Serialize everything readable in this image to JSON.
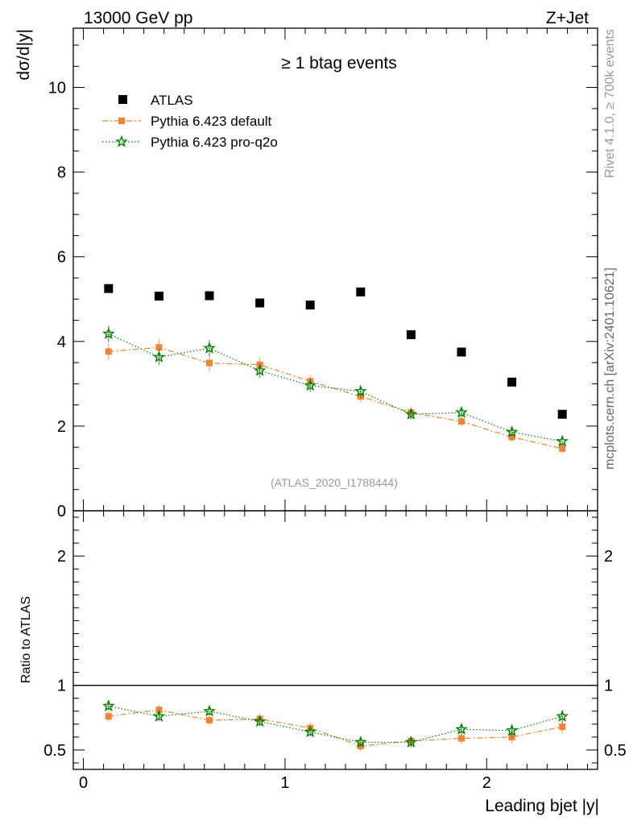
{
  "header": {
    "left": "13000 GeV pp",
    "right": "Z+Jet"
  },
  "side_labels": {
    "rivet": "Rivet 4.1.0, ≥ 700k events",
    "mcplots": "mcplots.cern.ch [arXiv:2401.10621]"
  },
  "colors": {
    "atlas": "#000000",
    "pythia_default": "#f58231",
    "pythia_proq2o": "#008000",
    "watermark": "#999999"
  },
  "chart_data": [
    {
      "type": "scatter",
      "panel": "main",
      "title": "≥ 1 btag events",
      "analysis_id": "(ATLAS_2020_I1788444)",
      "xlabel": "Leading bjet |y|",
      "ylabel": "dσ/d|y|",
      "xlim": [
        -0.05,
        2.55
      ],
      "ylim": [
        0,
        11.4
      ],
      "yticks": [
        0,
        2,
        4,
        6,
        8,
        10
      ],
      "ytick_labels": [
        "0",
        "2",
        "4",
        "6",
        "8",
        "10"
      ],
      "legend_position": "top-left",
      "x": [
        0.125,
        0.375,
        0.625,
        0.875,
        1.125,
        1.375,
        1.625,
        1.875,
        2.125,
        2.375
      ],
      "series": [
        {
          "name": "ATLAS",
          "style": "square-marker",
          "values": [
            5.25,
            5.07,
            5.08,
            4.91,
            4.86,
            5.17,
            4.16,
            3.75,
            3.04,
            2.28
          ],
          "errors": [
            0.05,
            0.05,
            0.05,
            0.05,
            0.05,
            0.05,
            0.05,
            0.05,
            0.05,
            0.05
          ]
        },
        {
          "name": "Pythia 6.423 default",
          "style": "dash-dot-square",
          "values": [
            3.76,
            3.86,
            3.49,
            3.45,
            3.06,
            2.7,
            2.32,
            2.11,
            1.74,
            1.47
          ],
          "errors": [
            0.2,
            0.2,
            0.2,
            0.18,
            0.15,
            0.14,
            0.13,
            0.12,
            0.1,
            0.09
          ]
        },
        {
          "name": "Pythia 6.423 pro-q2o",
          "style": "dotted-star",
          "values": [
            4.18,
            3.63,
            3.84,
            3.31,
            2.96,
            2.82,
            2.28,
            2.32,
            1.86,
            1.64
          ],
          "errors": [
            0.2,
            0.19,
            0.19,
            0.17,
            0.15,
            0.14,
            0.13,
            0.12,
            0.1,
            0.09
          ]
        }
      ]
    },
    {
      "type": "scatter",
      "panel": "ratio",
      "xlabel": "Leading bjet |y|",
      "ylabel": "Ratio to ATLAS",
      "xlim": [
        -0.05,
        2.55
      ],
      "ylim": [
        0.35,
        2.35
      ],
      "xticks": [
        0,
        1,
        2
      ],
      "xtick_labels": [
        "0",
        "1",
        "2"
      ],
      "yticks": [
        0.5,
        1,
        2
      ],
      "ytick_labels": [
        "0.5",
        "1",
        "2"
      ],
      "reference_line": 1,
      "x": [
        0.125,
        0.375,
        0.625,
        0.875,
        1.125,
        1.375,
        1.625,
        1.875,
        2.125,
        2.375
      ],
      "series": [
        {
          "name": "Pythia 6.423 default",
          "style": "dash-dot-square",
          "values": [
            0.76,
            0.81,
            0.73,
            0.74,
            0.67,
            0.53,
            0.57,
            0.59,
            0.6,
            0.68
          ],
          "errors": [
            0.04,
            0.04,
            0.04,
            0.04,
            0.04,
            0.04,
            0.04,
            0.045,
            0.05,
            0.05
          ]
        },
        {
          "name": "Pythia 6.423 pro-q2o",
          "style": "dotted-star",
          "values": [
            0.84,
            0.76,
            0.8,
            0.72,
            0.64,
            0.56,
            0.56,
            0.66,
            0.65,
            0.76
          ],
          "errors": [
            0.035,
            0.035,
            0.035,
            0.035,
            0.035,
            0.035,
            0.04,
            0.045,
            0.05,
            0.05
          ]
        }
      ]
    }
  ]
}
